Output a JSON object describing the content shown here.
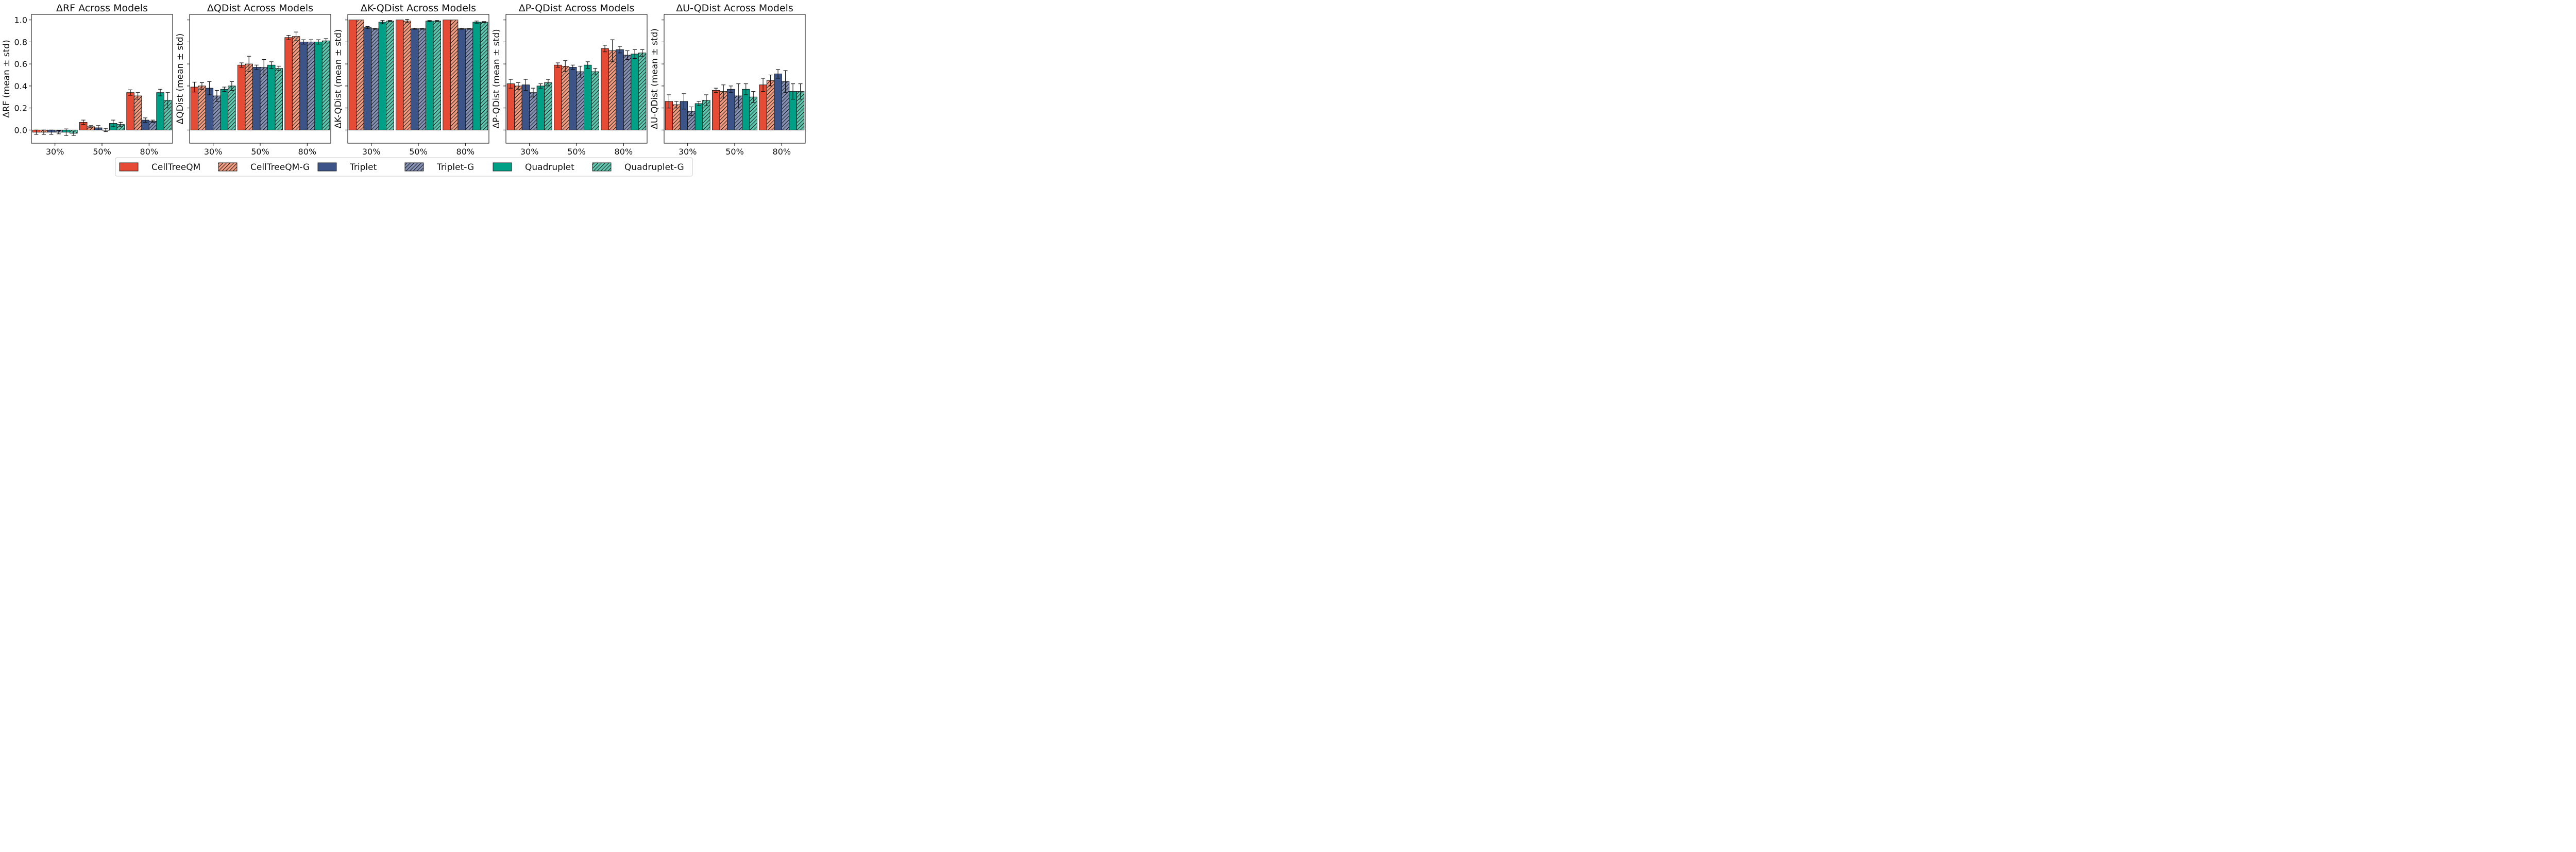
{
  "chart_data": [
    {
      "type": "bar",
      "title": "ΔRF Across Models",
      "ylabel": "ΔRF (mean ± std)",
      "xlabel": "",
      "ylim": [
        -0.12,
        1.05
      ],
      "yticks": [
        "0.0",
        "0.2",
        "0.4",
        "0.6",
        "0.8",
        "1.0"
      ],
      "categories": [
        "30%",
        "50%",
        "80%"
      ],
      "series": [
        {
          "name": "CellTreeQM",
          "values": [
            -0.02,
            0.07,
            0.34
          ],
          "errors": [
            0.02,
            0.02,
            0.025
          ]
        },
        {
          "name": "CellTreeQM-G",
          "values": [
            -0.02,
            0.03,
            0.31
          ],
          "errors": [
            0.02,
            0.01,
            0.03
          ]
        },
        {
          "name": "Triplet",
          "values": [
            -0.02,
            0.02,
            0.09
          ],
          "errors": [
            0.02,
            0.02,
            0.02
          ]
        },
        {
          "name": "Triplet-G",
          "values": [
            -0.02,
            0.0,
            0.08
          ],
          "errors": [
            0.015,
            0.015,
            0.01
          ]
        },
        {
          "name": "Quadruplet",
          "values": [
            -0.02,
            0.06,
            0.34
          ],
          "errors": [
            0.03,
            0.03,
            0.03
          ]
        },
        {
          "name": "Quadruplet-G",
          "values": [
            -0.03,
            0.05,
            0.27
          ],
          "errors": [
            0.02,
            0.02,
            0.07
          ]
        }
      ]
    },
    {
      "type": "bar",
      "title": "ΔQDist Across Models",
      "ylabel": "ΔQDist (mean ± std)",
      "xlabel": "",
      "ylim": [
        -0.12,
        1.05
      ],
      "categories": [
        "30%",
        "50%",
        "80%"
      ],
      "series": [
        {
          "name": "CellTreeQM",
          "values": [
            0.39,
            0.59,
            0.84
          ],
          "errors": [
            0.045,
            0.02,
            0.02
          ]
        },
        {
          "name": "CellTreeQM-G",
          "values": [
            0.4,
            0.6,
            0.85
          ],
          "errors": [
            0.03,
            0.07,
            0.04
          ]
        },
        {
          "name": "Triplet",
          "values": [
            0.38,
            0.57,
            0.8
          ],
          "errors": [
            0.06,
            0.02,
            0.02
          ]
        },
        {
          "name": "Triplet-G",
          "values": [
            0.31,
            0.57,
            0.8
          ],
          "errors": [
            0.05,
            0.07,
            0.02
          ]
        },
        {
          "name": "Quadruplet",
          "values": [
            0.37,
            0.59,
            0.8
          ],
          "errors": [
            0.02,
            0.03,
            0.02
          ]
        },
        {
          "name": "Quadruplet-G",
          "values": [
            0.4,
            0.56,
            0.81
          ],
          "errors": [
            0.04,
            0.02,
            0.02
          ]
        }
      ]
    },
    {
      "type": "bar",
      "title": "ΔK-QDist Across Models",
      "ylabel": "ΔK-QDist (mean ± std)",
      "xlabel": "",
      "ylim": [
        -0.12,
        1.05
      ],
      "categories": [
        "30%",
        "50%",
        "80%"
      ],
      "series": [
        {
          "name": "CellTreeQM",
          "values": [
            1.0,
            1.0,
            1.0
          ],
          "errors": [
            0.0,
            0.0,
            0.0
          ]
        },
        {
          "name": "CellTreeQM-G",
          "values": [
            1.0,
            0.99,
            1.0
          ],
          "errors": [
            0.0,
            0.015,
            0.0
          ]
        },
        {
          "name": "Triplet",
          "values": [
            0.93,
            0.92,
            0.92
          ],
          "errors": [
            0.01,
            0.005,
            0.005
          ]
        },
        {
          "name": "Triplet-G",
          "values": [
            0.92,
            0.92,
            0.92
          ],
          "errors": [
            0.005,
            0.005,
            0.005
          ]
        },
        {
          "name": "Quadruplet",
          "values": [
            0.98,
            0.99,
            0.98
          ],
          "errors": [
            0.015,
            0.005,
            0.01
          ]
        },
        {
          "name": "Quadruplet-G",
          "values": [
            0.99,
            0.99,
            0.98
          ],
          "errors": [
            0.005,
            0.005,
            0.005
          ]
        }
      ]
    },
    {
      "type": "bar",
      "title": "ΔP-QDist Across Models",
      "ylabel": "ΔP-QDist (mean ± std)",
      "xlabel": "",
      "ylim": [
        -0.12,
        1.05
      ],
      "categories": [
        "30%",
        "50%",
        "80%"
      ],
      "series": [
        {
          "name": "CellTreeQM",
          "values": [
            0.42,
            0.59,
            0.74
          ],
          "errors": [
            0.04,
            0.02,
            0.03
          ]
        },
        {
          "name": "CellTreeQM-G",
          "values": [
            0.4,
            0.58,
            0.72
          ],
          "errors": [
            0.03,
            0.05,
            0.1
          ]
        },
        {
          "name": "Triplet",
          "values": [
            0.41,
            0.57,
            0.73
          ],
          "errors": [
            0.05,
            0.02,
            0.03
          ]
        },
        {
          "name": "Triplet-G",
          "values": [
            0.34,
            0.53,
            0.68
          ],
          "errors": [
            0.04,
            0.05,
            0.04
          ]
        },
        {
          "name": "Quadruplet",
          "values": [
            0.4,
            0.59,
            0.69
          ],
          "errors": [
            0.02,
            0.03,
            0.04
          ]
        },
        {
          "name": "Quadruplet-G",
          "values": [
            0.43,
            0.53,
            0.7
          ],
          "errors": [
            0.03,
            0.03,
            0.03
          ]
        }
      ]
    },
    {
      "type": "bar",
      "title": "ΔU-QDist Across Models",
      "ylabel": "ΔU-QDist (mean ± std)",
      "xlabel": "",
      "ylim": [
        -0.12,
        1.05
      ],
      "categories": [
        "30%",
        "50%",
        "80%"
      ],
      "series": [
        {
          "name": "CellTreeQM",
          "values": [
            0.26,
            0.36,
            0.41
          ],
          "errors": [
            0.06,
            0.02,
            0.06
          ]
        },
        {
          "name": "CellTreeQM-G",
          "values": [
            0.23,
            0.35,
            0.45
          ],
          "errors": [
            0.03,
            0.06,
            0.05
          ]
        },
        {
          "name": "Triplet",
          "values": [
            0.26,
            0.37,
            0.51
          ],
          "errors": [
            0.07,
            0.03,
            0.04
          ]
        },
        {
          "name": "Triplet-G",
          "values": [
            0.17,
            0.31,
            0.44
          ],
          "errors": [
            0.04,
            0.11,
            0.1
          ]
        },
        {
          "name": "Quadruplet",
          "values": [
            0.24,
            0.37,
            0.35
          ],
          "errors": [
            0.02,
            0.05,
            0.07
          ]
        },
        {
          "name": "Quadruplet-G",
          "values": [
            0.27,
            0.3,
            0.35
          ],
          "errors": [
            0.05,
            0.05,
            0.07
          ]
        }
      ]
    }
  ],
  "legend": {
    "placement": "bottom-center",
    "entries": [
      {
        "name": "CellTreeQM",
        "color": "#e64b35",
        "hatch": false
      },
      {
        "name": "CellTreeQM-G",
        "color": "#f39b7f",
        "hatch": true
      },
      {
        "name": "Triplet",
        "color": "#3c5488",
        "hatch": false
      },
      {
        "name": "Triplet-G",
        "color": "#8491b4",
        "hatch": true
      },
      {
        "name": "Quadruplet",
        "color": "#00a087",
        "hatch": false
      },
      {
        "name": "Quadruplet-G",
        "color": "#5cc8b0",
        "hatch": true
      }
    ]
  }
}
